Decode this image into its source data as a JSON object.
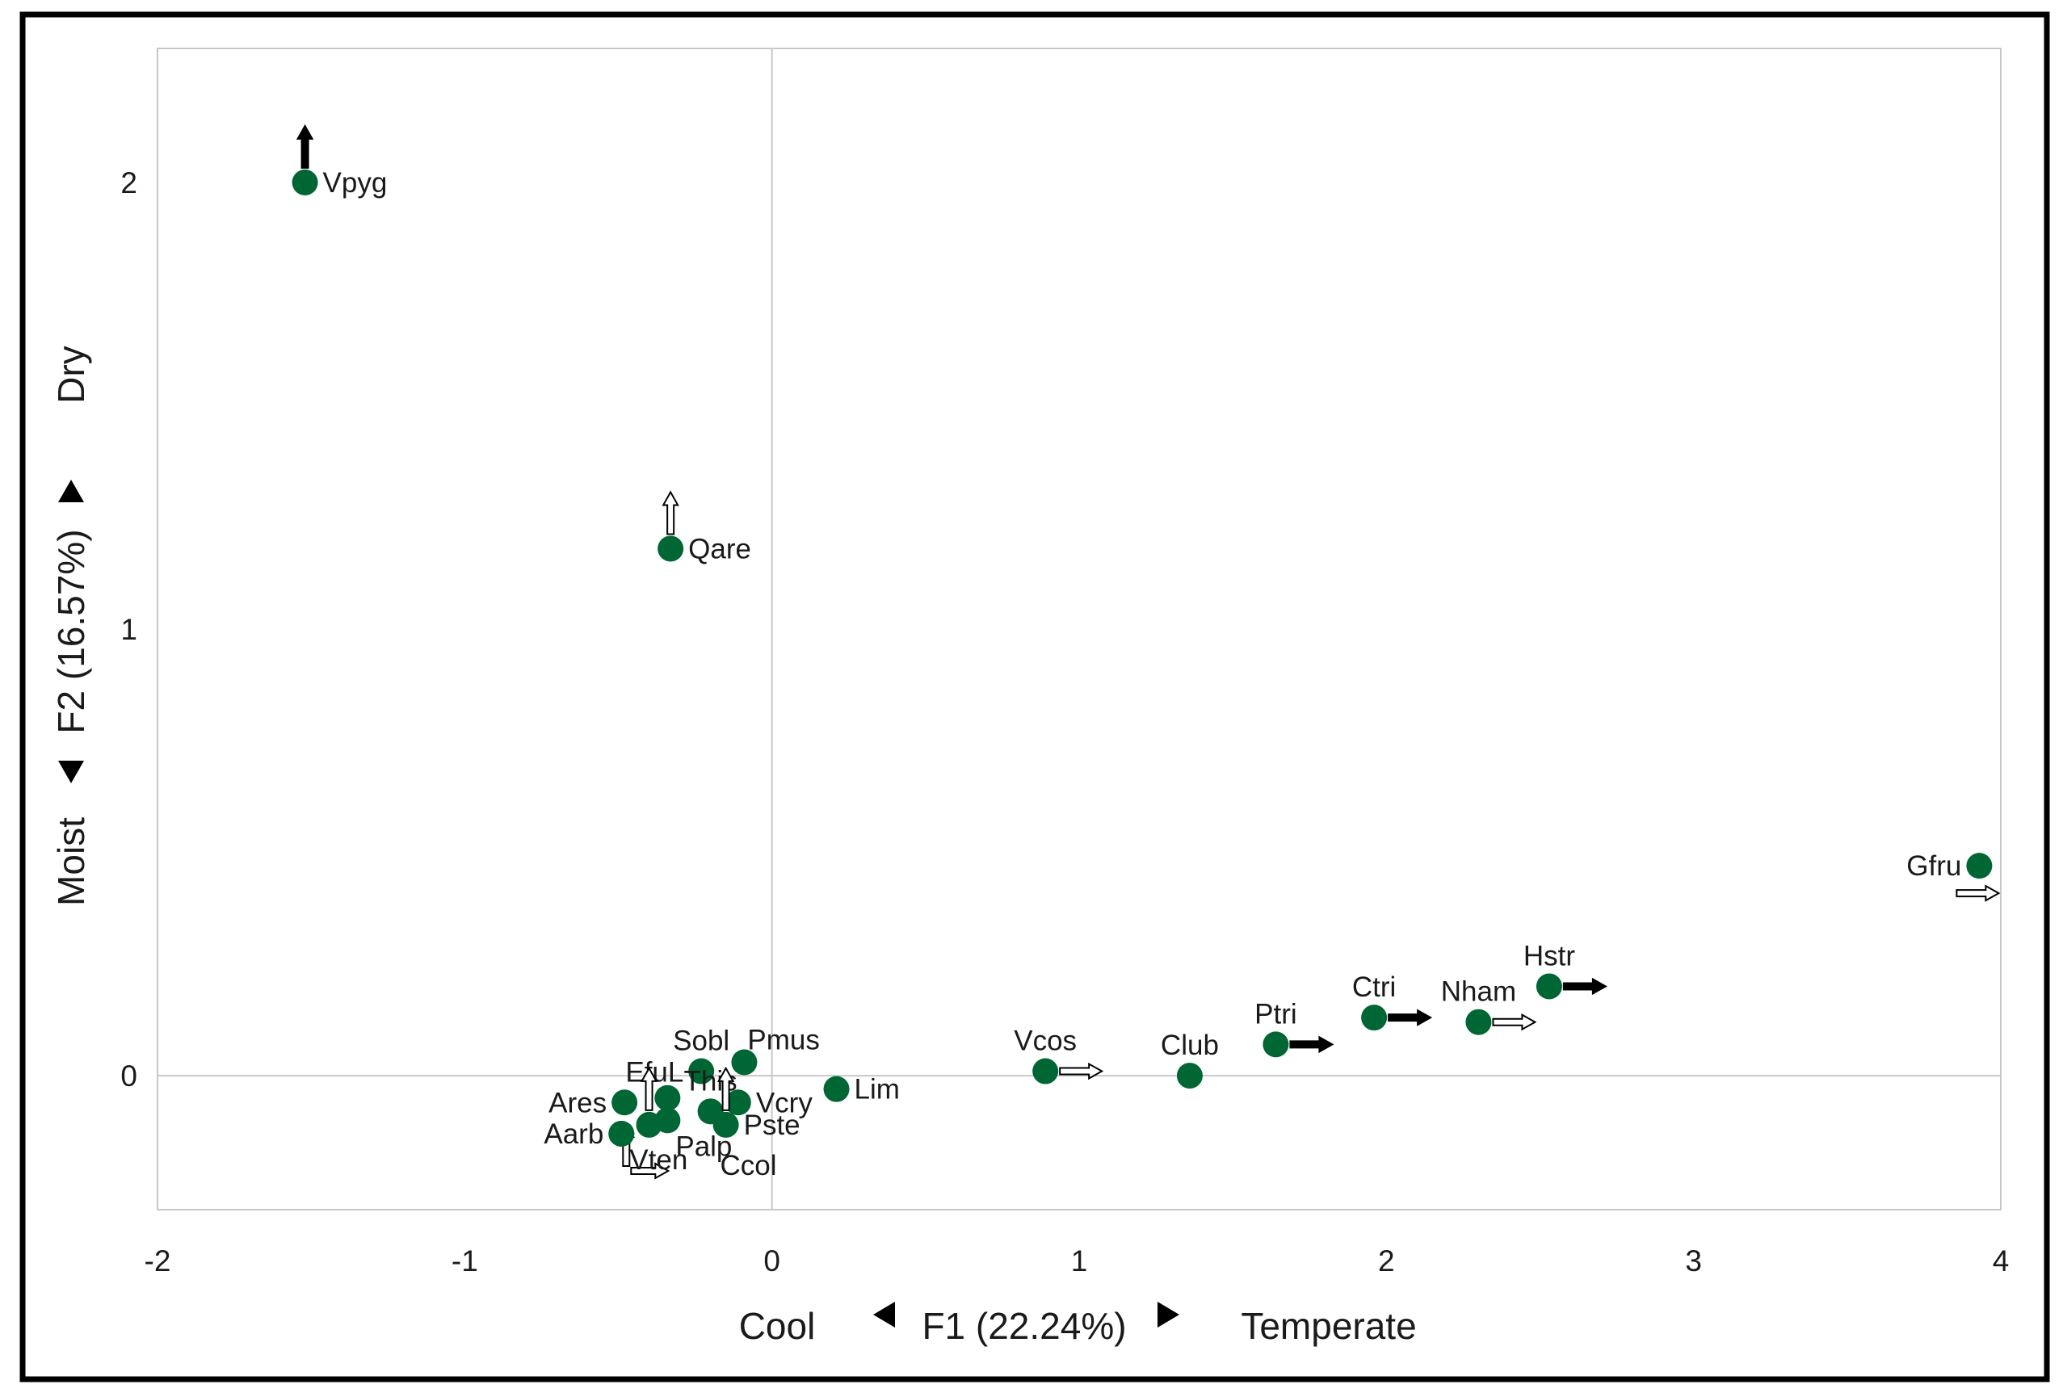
{
  "chart_data": {
    "type": "scatter",
    "title": "",
    "xaxis": {
      "left_label": "Cool",
      "center_label": "F1 (22.24%)",
      "right_label": "Temperate",
      "range": [
        -2,
        4
      ],
      "ticks": [
        -2,
        -1,
        0,
        1,
        2,
        3,
        4
      ]
    },
    "yaxis": {
      "bottom_label": "Moist",
      "center_label": "F2 (16.57%)",
      "top_label": "Dry",
      "range": [
        -0.3,
        2.3
      ],
      "ticks": [
        0,
        1,
        2
      ]
    },
    "marker_color": "#006633",
    "points": [
      {
        "label": "Vpyg",
        "x": -1.52,
        "y": 2.0,
        "arrow": "up",
        "arrow_style": "filled",
        "label_pos": "right"
      },
      {
        "label": "Qare",
        "x": -0.33,
        "y": 1.18,
        "arrow": "up",
        "arrow_style": "open",
        "label_pos": "right"
      },
      {
        "label": "Gfru",
        "x": 3.93,
        "y": 0.47,
        "arrow": "right",
        "arrow_style": "open",
        "label_pos": "left"
      },
      {
        "label": "Hstr",
        "x": 2.53,
        "y": 0.2,
        "arrow": "right",
        "arrow_style": "filled",
        "label_pos": "above"
      },
      {
        "label": "Ctri",
        "x": 1.96,
        "y": 0.13,
        "arrow": "right",
        "arrow_style": "filled",
        "label_pos": "above"
      },
      {
        "label": "Nham",
        "x": 2.3,
        "y": 0.12,
        "arrow": "right",
        "arrow_style": "open",
        "label_pos": "above"
      },
      {
        "label": "Ptri",
        "x": 1.64,
        "y": 0.07,
        "arrow": "right",
        "arrow_style": "filled",
        "label_pos": "above"
      },
      {
        "label": "Club",
        "x": 1.36,
        "y": 0.0,
        "arrow": "none",
        "arrow_style": "none",
        "label_pos": "above"
      },
      {
        "label": "Vcos",
        "x": 0.89,
        "y": 0.01,
        "arrow": "right",
        "arrow_style": "open",
        "label_pos": "above"
      },
      {
        "label": "Lim",
        "x": 0.21,
        "y": -0.03,
        "arrow": "none",
        "arrow_style": "none",
        "label_pos": "right"
      },
      {
        "label": "Pmus",
        "x": -0.09,
        "y": 0.03,
        "arrow": "none",
        "arrow_style": "none",
        "label_pos": "above-right"
      },
      {
        "label": "Sobl",
        "x": -0.23,
        "y": 0.01,
        "arrow": "none",
        "arrow_style": "none",
        "label_pos": "above"
      },
      {
        "label": "EfuL",
        "x": -0.34,
        "y": -0.05,
        "arrow": "none",
        "arrow_style": "none",
        "label_pos": "above-left"
      },
      {
        "label": "This",
        "x": -0.2,
        "y": -0.08,
        "arrow": "none",
        "arrow_style": "none",
        "label_pos": "above"
      },
      {
        "label": "Vcry",
        "x": -0.11,
        "y": -0.06,
        "arrow": "none",
        "arrow_style": "none",
        "label_pos": "right"
      },
      {
        "label": "Pste",
        "x": -0.15,
        "y": -0.11,
        "arrow": "up",
        "arrow_style": "open",
        "label_pos": "right"
      },
      {
        "label": "Ares",
        "x": -0.48,
        "y": -0.06,
        "arrow": "none",
        "arrow_style": "none",
        "label_pos": "left"
      },
      {
        "label": "Aarb",
        "x": -0.49,
        "y": -0.13,
        "arrow": "none",
        "arrow_style": "none",
        "label_pos": "left"
      },
      {
        "label": "Palp",
        "x": -0.34,
        "y": -0.1,
        "arrow": "none",
        "arrow_style": "none",
        "label_pos": "below"
      },
      {
        "label": "Ccol",
        "x": -0.4,
        "y": -0.11,
        "arrow": "up",
        "arrow_style": "open",
        "label_pos": "below-far"
      },
      {
        "label": "Vten",
        "x": -0.49,
        "y": -0.13,
        "arrow": "up-right",
        "arrow_style": "open",
        "label_pos": "below"
      }
    ]
  }
}
